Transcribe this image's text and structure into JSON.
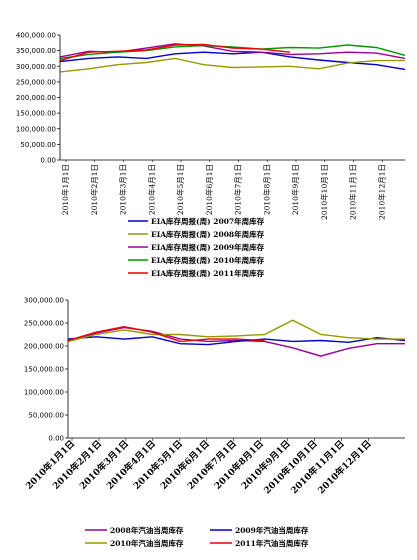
{
  "chart_data": [
    {
      "type": "line",
      "ylim": [
        0,
        400000
      ],
      "y_ticks": [
        "400,000.00",
        "350,000.00",
        "300,000.00",
        "250,000.00",
        "200,000.00",
        "150,000.00",
        "100,000.00",
        "50,000.00",
        "0.00"
      ],
      "x_ticks": [
        "2010年1月1日",
        "2010年2月1日",
        "2010年3月1日",
        "2010年4月1日",
        "2010年5月1日",
        "2010年6月1日",
        "2010年7月1日",
        "2010年8月1日",
        "2010年9月1日",
        "2010年10月1日",
        "2010年11月1日",
        "2010年12月1日"
      ],
      "legend_position": "bottom",
      "series": [
        {
          "name": "EIA库存周报(周) 2007年周库存",
          "color": "#0000cc",
          "values": [
            315000,
            325000,
            330000,
            325000,
            340000,
            345000,
            340000,
            345000,
            330000,
            320000,
            312000,
            305000,
            290000
          ]
        },
        {
          "name": "EIA库存周报(周) 2008年周库存",
          "color": "#999900",
          "values": [
            282000,
            292000,
            305000,
            312000,
            325000,
            305000,
            296000,
            298000,
            300000,
            292000,
            310000,
            318000,
            318000
          ]
        },
        {
          "name": "EIA库存周报(周) 2009年周库存",
          "color": "#990099",
          "values": [
            330000,
            348000,
            345000,
            358000,
            372000,
            365000,
            348000,
            345000,
            338000,
            340000,
            345000,
            342000,
            325000
          ]
        },
        {
          "name": "EIA库存周报(周) 2010年周库存",
          "color": "#009900",
          "values": [
            325000,
            338000,
            345000,
            350000,
            362000,
            366000,
            362000,
            355000,
            360000,
            358000,
            368000,
            360000,
            335000
          ]
        },
        {
          "name": "EIA库存周报(周) 2011年周库存",
          "color": "#ee0000",
          "values": [
            318000,
            345000,
            348000,
            352000,
            368000,
            370000,
            358000,
            355000,
            345000,
            null,
            null,
            null,
            null
          ]
        }
      ]
    },
    {
      "type": "line",
      "ylim": [
        0,
        300000
      ],
      "y_ticks": [
        "300,000.00",
        "250,000.00",
        "200,000.00",
        "150,000.00",
        "100,000.00",
        "50,000.00",
        "0.00"
      ],
      "x_ticks": [
        "2010年1月1日",
        "2010年2月1日",
        "2010年3月1日",
        "2010年4月1日",
        "2010年5月1日",
        "2010年6月1日",
        "2010年7月1日",
        "2010年8月1日",
        "2010年9月1日",
        "2010年10月1日",
        "2010年11月1日",
        "2010年12月1日"
      ],
      "legend_position": "bottom",
      "series": [
        {
          "name": "2008年汽油当周库存",
          "color": "#990099",
          "values": [
            210000,
            228000,
            240000,
            232000,
            215000,
            210000,
            212000,
            210000,
            196000,
            178000,
            195000,
            205000,
            205000
          ]
        },
        {
          "name": "2009年汽油当周库存",
          "color": "#0000cc",
          "values": [
            215000,
            220000,
            215000,
            220000,
            205000,
            203000,
            210000,
            215000,
            210000,
            212000,
            208000,
            218000,
            212000
          ]
        },
        {
          "name": "2010年汽油当周库存",
          "color": "#999900",
          "values": [
            210000,
            225000,
            235000,
            225000,
            225000,
            220000,
            222000,
            225000,
            256000,
            225000,
            218000,
            215000,
            215000
          ]
        },
        {
          "name": "2011年汽油当周库存",
          "color": "#ee0000",
          "values": [
            212000,
            230000,
            242000,
            230000,
            210000,
            215000,
            215000,
            212000,
            null,
            null,
            null,
            null,
            null
          ]
        }
      ]
    }
  ]
}
